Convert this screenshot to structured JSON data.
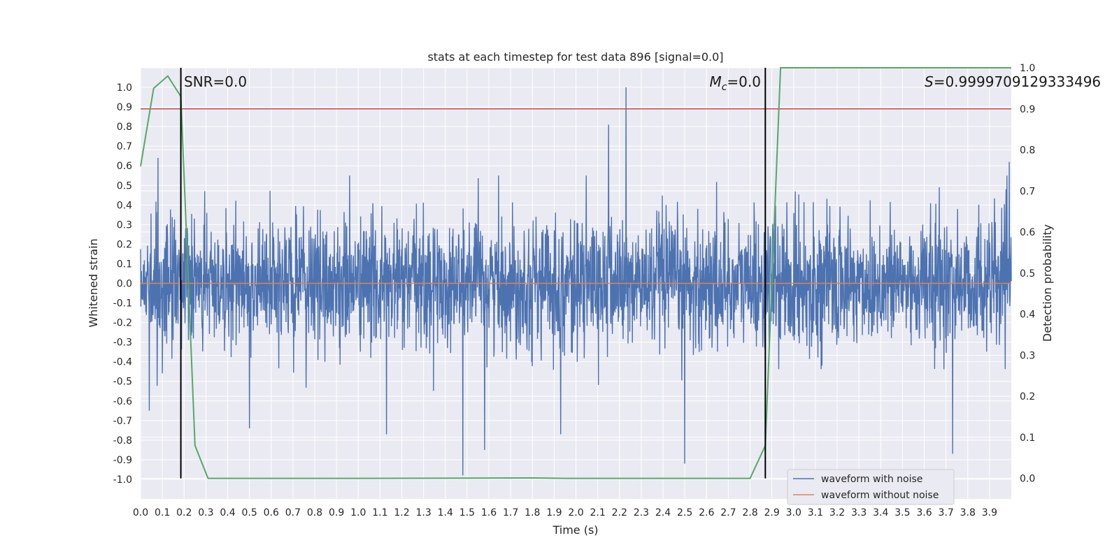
{
  "chart_data": {
    "type": "line",
    "title": "stats at each timestep for test data 896 [signal=0.0]",
    "xlabel": "Time (s)",
    "ylabel": "Whitened strain",
    "y2label": "Detection probability",
    "xlim": [
      0.0,
      4.0
    ],
    "ylim": [
      -1.1,
      1.1
    ],
    "y2lim": [
      -0.05,
      1.0
    ],
    "x_ticks": [
      "0.0",
      "0.1",
      "0.2",
      "0.3",
      "0.4",
      "0.5",
      "0.6",
      "0.7",
      "0.8",
      "0.9",
      "1.0",
      "1.1",
      "1.2",
      "1.3",
      "1.4",
      "1.5",
      "1.6",
      "1.7",
      "1.8",
      "1.9",
      "2.0",
      "2.1",
      "2.2",
      "2.3",
      "2.4",
      "2.5",
      "2.6",
      "2.7",
      "2.8",
      "2.9",
      "3.0",
      "3.1",
      "3.2",
      "3.3",
      "3.4",
      "3.5",
      "3.6",
      "3.7",
      "3.8",
      "3.9"
    ],
    "y_ticks": [
      "1.0",
      "0.9",
      "0.8",
      "0.7",
      "0.6",
      "0.5",
      "0.4",
      "0.3",
      "0.2",
      "0.1",
      "0.0",
      "-0.1",
      "-0.2",
      "-0.3",
      "-0.4",
      "-0.5",
      "-0.6",
      "-0.7",
      "-0.8",
      "-0.9",
      "-1.0"
    ],
    "y2_ticks": [
      "1.0",
      "0.9",
      "0.8",
      "0.7",
      "0.6",
      "0.5",
      "0.4",
      "0.3",
      "0.2",
      "0.1",
      "0.0"
    ],
    "grid": true,
    "legend_position": "lower-right",
    "series": [
      {
        "name": "waveform with noise",
        "color": "#4c72b0",
        "axis": "left",
        "kind": "noise",
        "amplitude_typical": 0.3,
        "spikes": [
          {
            "x": 0.08,
            "y": 0.64
          },
          {
            "x": 0.04,
            "y": -0.65
          },
          {
            "x": 0.5,
            "y": -0.74
          },
          {
            "x": 1.13,
            "y": -0.77
          },
          {
            "x": 1.48,
            "y": -0.98
          },
          {
            "x": 1.58,
            "y": -0.85
          },
          {
            "x": 2.15,
            "y": 0.81
          },
          {
            "x": 2.23,
            "y": 1.0
          },
          {
            "x": 2.5,
            "y": -0.92
          },
          {
            "x": 3.73,
            "y": -0.87
          },
          {
            "x": 1.93,
            "y": -0.77
          },
          {
            "x": 3.99,
            "y": 0.62
          }
        ]
      },
      {
        "name": "waveform without noise",
        "color": "#dd8452",
        "axis": "left",
        "x": [
          0.0,
          4.0
        ],
        "y": [
          0.0,
          0.0
        ]
      },
      {
        "name": "",
        "color": "#55a868",
        "axis": "right",
        "x": [
          0.0,
          0.06,
          0.125,
          0.185,
          0.25,
          0.31,
          1.0,
          1.8,
          1.95,
          2.8,
          2.87,
          2.94,
          3.0,
          4.0
        ],
        "y": [
          0.76,
          0.95,
          0.98,
          0.93,
          0.08,
          0.0,
          0.0,
          0.001,
          0.0,
          0.0,
          0.08,
          1.0,
          1.0,
          1.0
        ]
      }
    ],
    "threshold": {
      "axis": "right",
      "y": 0.9,
      "color": "#c44e52"
    },
    "vlines": [
      {
        "x": 0.185,
        "color": "#000000"
      },
      {
        "x": 2.87,
        "color": "#000000"
      }
    ],
    "annotations": {
      "snr": "SNR=0.0",
      "mc_symbol": "M",
      "mc_subscript": "c",
      "mc_value": "=0.0",
      "s_symbol": "S",
      "s_value": "=0.9999709129333496"
    }
  }
}
